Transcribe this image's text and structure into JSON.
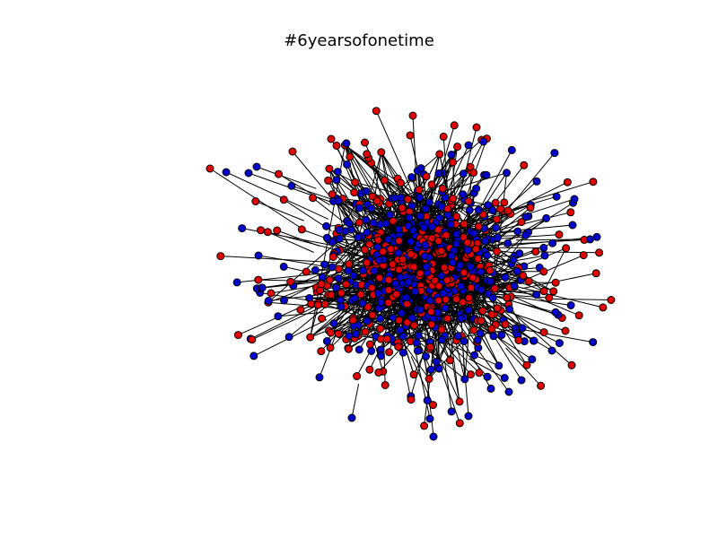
{
  "figure": {
    "title": "#6yearsofonetime"
  },
  "graph": {
    "colors": {
      "group_a": "#e00000",
      "group_b": "#0000cc",
      "edge": "#000000",
      "node_outline": "#000000",
      "background": "#ffffff"
    }
  }
}
